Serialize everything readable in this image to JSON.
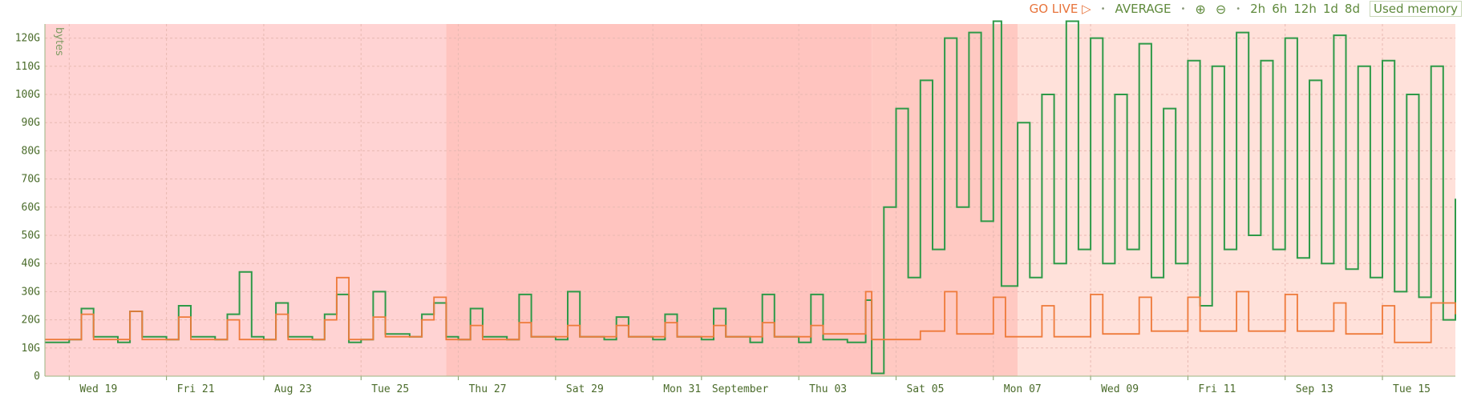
{
  "toolbar": {
    "go_live": "GO LIVE",
    "aggregation": "AVERAGE",
    "zoom_in": "⊕",
    "zoom_out": "⊖",
    "ranges": [
      "2h",
      "6h",
      "12h",
      "1d",
      "8d"
    ],
    "metric": "Used memory"
  },
  "colors": {
    "green": "#2e9a48",
    "orange": "#ee7a3a",
    "band_light": "#ffd3d3",
    "band_mid": "#ffc4bf",
    "band_pale": "#ffe1da",
    "axis_text": "#4a6b2a"
  },
  "chart_data": {
    "type": "line",
    "ylabel": "bytes",
    "yticks": [
      "0",
      "10G",
      "20G",
      "30G",
      "40G",
      "50G",
      "60G",
      "70G",
      "80G",
      "90G",
      "100G",
      "110G",
      "120G"
    ],
    "ylim": [
      0,
      125
    ],
    "xlim": [
      "2015-08-18T12:00",
      "2015-09-16T12:00"
    ],
    "xticks": [
      {
        "date": "2015-08-19",
        "label": "Wed 19"
      },
      {
        "date": "2015-08-21",
        "label": "Fri 21"
      },
      {
        "date": "2015-08-23",
        "label": "Aug 23"
      },
      {
        "date": "2015-08-25",
        "label": "Tue 25"
      },
      {
        "date": "2015-08-27",
        "label": "Thu 27"
      },
      {
        "date": "2015-08-29",
        "label": "Sat 29"
      },
      {
        "date": "2015-08-31",
        "label": "Mon 31"
      },
      {
        "date": "2015-09-01",
        "label": "September"
      },
      {
        "date": "2015-09-03",
        "label": "Thu 03"
      },
      {
        "date": "2015-09-05",
        "label": "Sat 05"
      },
      {
        "date": "2015-09-07",
        "label": "Mon 07"
      },
      {
        "date": "2015-09-09",
        "label": "Wed 09"
      },
      {
        "date": "2015-09-11",
        "label": "Fri 11"
      },
      {
        "date": "2015-09-13",
        "label": "Sep 13"
      },
      {
        "date": "2015-09-15",
        "label": "Tue 15"
      }
    ],
    "bands": [
      {
        "from": "2015-08-18T12:00",
        "to": "2015-08-26T18:00",
        "color": "#ffd3d3"
      },
      {
        "from": "2015-08-26T18:00",
        "to": "2015-09-04T12:00",
        "color": "#ffc4bf"
      },
      {
        "from": "2015-09-04T12:00",
        "to": "2015-09-07T12:00",
        "color": "#ffc9c2"
      },
      {
        "from": "2015-09-07T12:00",
        "to": "2015-09-16T12:00",
        "color": "#ffe1da"
      }
    ],
    "series": [
      {
        "color": "#2e9a48",
        "values": [
          [
            "2015-08-18T12:00",
            12
          ],
          [
            "2015-08-19T00:00",
            13
          ],
          [
            "2015-08-19T06:00",
            24
          ],
          [
            "2015-08-19T12:00",
            14
          ],
          [
            "2015-08-20T00:00",
            12
          ],
          [
            "2015-08-20T06:00",
            23
          ],
          [
            "2015-08-20T12:00",
            14
          ],
          [
            "2015-08-21T00:00",
            13
          ],
          [
            "2015-08-21T06:00",
            25
          ],
          [
            "2015-08-21T12:00",
            14
          ],
          [
            "2015-08-22T00:00",
            13
          ],
          [
            "2015-08-22T06:00",
            22
          ],
          [
            "2015-08-22T12:00",
            37
          ],
          [
            "2015-08-22T18:00",
            14
          ],
          [
            "2015-08-23T00:00",
            13
          ],
          [
            "2015-08-23T06:00",
            26
          ],
          [
            "2015-08-23T12:00",
            14
          ],
          [
            "2015-08-24T00:00",
            13
          ],
          [
            "2015-08-24T06:00",
            22
          ],
          [
            "2015-08-24T12:00",
            29
          ],
          [
            "2015-08-24T18:00",
            12
          ],
          [
            "2015-08-25T00:00",
            13
          ],
          [
            "2015-08-25T06:00",
            30
          ],
          [
            "2015-08-25T12:00",
            15
          ],
          [
            "2015-08-26T00:00",
            14
          ],
          [
            "2015-08-26T06:00",
            22
          ],
          [
            "2015-08-26T12:00",
            26
          ],
          [
            "2015-08-26T18:00",
            14
          ],
          [
            "2015-08-27T00:00",
            13
          ],
          [
            "2015-08-27T06:00",
            24
          ],
          [
            "2015-08-27T12:00",
            14
          ],
          [
            "2015-08-28T00:00",
            13
          ],
          [
            "2015-08-28T06:00",
            29
          ],
          [
            "2015-08-28T12:00",
            14
          ],
          [
            "2015-08-29T00:00",
            13
          ],
          [
            "2015-08-29T06:00",
            30
          ],
          [
            "2015-08-29T12:00",
            14
          ],
          [
            "2015-08-30T00:00",
            13
          ],
          [
            "2015-08-30T06:00",
            21
          ],
          [
            "2015-08-30T12:00",
            14
          ],
          [
            "2015-08-31T00:00",
            13
          ],
          [
            "2015-08-31T06:00",
            22
          ],
          [
            "2015-08-31T12:00",
            14
          ],
          [
            "2015-09-01T00:00",
            13
          ],
          [
            "2015-09-01T06:00",
            24
          ],
          [
            "2015-09-01T12:00",
            14
          ],
          [
            "2015-09-02T00:00",
            12
          ],
          [
            "2015-09-02T06:00",
            29
          ],
          [
            "2015-09-02T12:00",
            14
          ],
          [
            "2015-09-03T00:00",
            12
          ],
          [
            "2015-09-03T06:00",
            29
          ],
          [
            "2015-09-03T12:00",
            13
          ],
          [
            "2015-09-04T00:00",
            12
          ],
          [
            "2015-09-04T09:00",
            27
          ],
          [
            "2015-09-04T12:00",
            1
          ],
          [
            "2015-09-04T18:00",
            60
          ],
          [
            "2015-09-05T00:00",
            95
          ],
          [
            "2015-09-05T06:00",
            35
          ],
          [
            "2015-09-05T12:00",
            105
          ],
          [
            "2015-09-05T18:00",
            45
          ],
          [
            "2015-09-06T00:00",
            120
          ],
          [
            "2015-09-06T06:00",
            60
          ],
          [
            "2015-09-06T12:00",
            122
          ],
          [
            "2015-09-06T18:00",
            55
          ],
          [
            "2015-09-07T00:00",
            126
          ],
          [
            "2015-09-07T04:00",
            32
          ],
          [
            "2015-09-07T12:00",
            90
          ],
          [
            "2015-09-07T18:00",
            35
          ],
          [
            "2015-09-08T00:00",
            100
          ],
          [
            "2015-09-08T06:00",
            40
          ],
          [
            "2015-09-08T12:00",
            126
          ],
          [
            "2015-09-08T18:00",
            45
          ],
          [
            "2015-09-09T00:00",
            120
          ],
          [
            "2015-09-09T06:00",
            40
          ],
          [
            "2015-09-09T12:00",
            100
          ],
          [
            "2015-09-09T18:00",
            45
          ],
          [
            "2015-09-10T00:00",
            118
          ],
          [
            "2015-09-10T06:00",
            35
          ],
          [
            "2015-09-10T12:00",
            95
          ],
          [
            "2015-09-10T18:00",
            40
          ],
          [
            "2015-09-11T00:00",
            112
          ],
          [
            "2015-09-11T06:00",
            25
          ],
          [
            "2015-09-11T12:00",
            110
          ],
          [
            "2015-09-11T18:00",
            45
          ],
          [
            "2015-09-12T00:00",
            122
          ],
          [
            "2015-09-12T06:00",
            50
          ],
          [
            "2015-09-12T12:00",
            112
          ],
          [
            "2015-09-12T18:00",
            45
          ],
          [
            "2015-09-13T00:00",
            120
          ],
          [
            "2015-09-13T06:00",
            42
          ],
          [
            "2015-09-13T12:00",
            105
          ],
          [
            "2015-09-13T18:00",
            40
          ],
          [
            "2015-09-14T00:00",
            121
          ],
          [
            "2015-09-14T06:00",
            38
          ],
          [
            "2015-09-14T12:00",
            110
          ],
          [
            "2015-09-14T18:00",
            35
          ],
          [
            "2015-09-15T00:00",
            112
          ],
          [
            "2015-09-15T06:00",
            30
          ],
          [
            "2015-09-15T12:00",
            100
          ],
          [
            "2015-09-15T18:00",
            28
          ],
          [
            "2015-09-16T00:00",
            110
          ],
          [
            "2015-09-16T06:00",
            20
          ],
          [
            "2015-09-16T12:00",
            63
          ]
        ]
      },
      {
        "color": "#ee7a3a",
        "values": [
          [
            "2015-08-18T12:00",
            13
          ],
          [
            "2015-08-19T06:00",
            22
          ],
          [
            "2015-08-19T12:00",
            13
          ],
          [
            "2015-08-20T06:00",
            23
          ],
          [
            "2015-08-20T12:00",
            13
          ],
          [
            "2015-08-21T06:00",
            21
          ],
          [
            "2015-08-21T12:00",
            13
          ],
          [
            "2015-08-22T06:00",
            20
          ],
          [
            "2015-08-22T12:00",
            13
          ],
          [
            "2015-08-23T06:00",
            22
          ],
          [
            "2015-08-23T12:00",
            13
          ],
          [
            "2015-08-24T06:00",
            20
          ],
          [
            "2015-08-24T12:00",
            35
          ],
          [
            "2015-08-24T18:00",
            13
          ],
          [
            "2015-08-25T06:00",
            21
          ],
          [
            "2015-08-25T12:00",
            14
          ],
          [
            "2015-08-26T06:00",
            20
          ],
          [
            "2015-08-26T12:00",
            28
          ],
          [
            "2015-08-26T18:00",
            13
          ],
          [
            "2015-08-27T06:00",
            18
          ],
          [
            "2015-08-27T12:00",
            13
          ],
          [
            "2015-08-28T06:00",
            19
          ],
          [
            "2015-08-28T12:00",
            14
          ],
          [
            "2015-08-29T06:00",
            18
          ],
          [
            "2015-08-29T12:00",
            14
          ],
          [
            "2015-08-30T06:00",
            18
          ],
          [
            "2015-08-30T12:00",
            14
          ],
          [
            "2015-08-31T06:00",
            19
          ],
          [
            "2015-08-31T12:00",
            14
          ],
          [
            "2015-09-01T06:00",
            18
          ],
          [
            "2015-09-01T12:00",
            14
          ],
          [
            "2015-09-02T06:00",
            19
          ],
          [
            "2015-09-02T12:00",
            14
          ],
          [
            "2015-09-03T06:00",
            18
          ],
          [
            "2015-09-03T12:00",
            15
          ],
          [
            "2015-09-04T09:00",
            30
          ],
          [
            "2015-09-04T12:00",
            13
          ],
          [
            "2015-09-05T12:00",
            16
          ],
          [
            "2015-09-06T00:00",
            30
          ],
          [
            "2015-09-06T06:00",
            15
          ],
          [
            "2015-09-07T00:00",
            28
          ],
          [
            "2015-09-07T06:00",
            14
          ],
          [
            "2015-09-08T00:00",
            25
          ],
          [
            "2015-09-08T06:00",
            14
          ],
          [
            "2015-09-09T00:00",
            29
          ],
          [
            "2015-09-09T06:00",
            15
          ],
          [
            "2015-09-10T00:00",
            28
          ],
          [
            "2015-09-10T06:00",
            16
          ],
          [
            "2015-09-11T00:00",
            28
          ],
          [
            "2015-09-11T06:00",
            16
          ],
          [
            "2015-09-12T00:00",
            30
          ],
          [
            "2015-09-12T06:00",
            16
          ],
          [
            "2015-09-13T00:00",
            29
          ],
          [
            "2015-09-13T06:00",
            16
          ],
          [
            "2015-09-14T00:00",
            26
          ],
          [
            "2015-09-14T06:00",
            15
          ],
          [
            "2015-09-15T00:00",
            25
          ],
          [
            "2015-09-15T06:00",
            12
          ],
          [
            "2015-09-16T00:00",
            26
          ],
          [
            "2015-09-16T12:00",
            22
          ]
        ]
      }
    ],
    "grid": true
  }
}
